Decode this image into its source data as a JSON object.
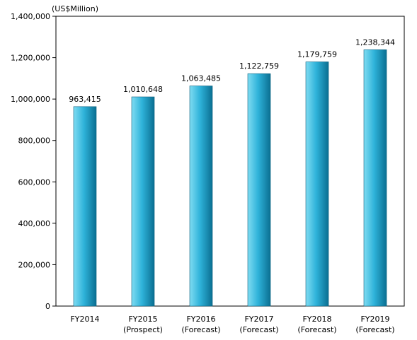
{
  "chart_data": {
    "type": "bar",
    "unit_label": "(US$Million)",
    "categories": [
      [
        "FY2014"
      ],
      [
        "FY2015",
        "(Prospect)"
      ],
      [
        "FY2016",
        "(Forecast)"
      ],
      [
        "FY2017",
        "(Forecast)"
      ],
      [
        "FY2018",
        "(Forecast)"
      ],
      [
        "FY2019",
        "(Forecast)"
      ]
    ],
    "values": [
      963415,
      1010648,
      1063485,
      1122759,
      1179759,
      1238344
    ],
    "value_labels": [
      "963,415",
      "1,010,648",
      "1,063,485",
      "1,122,759",
      "1,179,759",
      "1,238,344"
    ],
    "y_ticks": [
      0,
      200000,
      400000,
      600000,
      800000,
      1000000,
      1200000,
      1400000
    ],
    "y_tick_labels": [
      "0",
      "200,000",
      "400,000",
      "600,000",
      "800,000",
      "1,000,000",
      "1,200,000",
      "1,400,000"
    ],
    "ylim": [
      0,
      1400000
    ],
    "grid": false,
    "legend": "none",
    "colors": {
      "bar_light": "#7fdcf2",
      "bar_mid": "#2fb3da",
      "bar_dark": "#0a6f92",
      "axis": "#000000"
    }
  }
}
